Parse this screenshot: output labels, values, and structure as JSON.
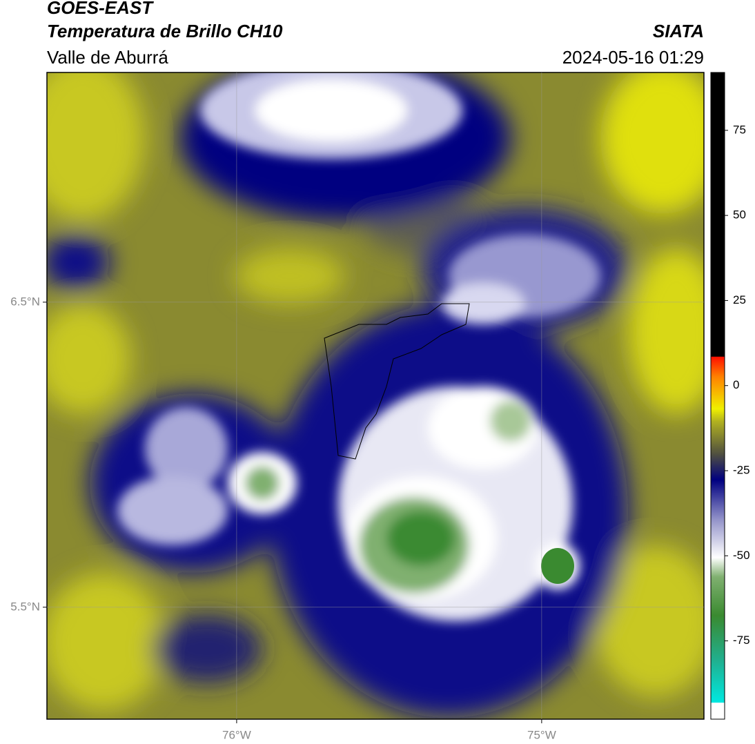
{
  "header": {
    "title": "GOES-EAST",
    "subtitle": "Temperatura de Brillo CH10",
    "region": "Valle de Aburrá",
    "source": "SIATA",
    "datetime": "2024-05-16 01:29"
  },
  "map": {
    "lon_range": [
      -76.622,
      -74.468
    ],
    "lat_range": [
      5.133,
      7.253
    ],
    "lon_ticks": [
      {
        "value": -76,
        "label": "76°W"
      },
      {
        "value": -75,
        "label": "75°W"
      }
    ],
    "lat_ticks": [
      {
        "value": 6.5,
        "label": "6.5°N"
      },
      {
        "value": 5.5,
        "label": "5.5°N"
      }
    ]
  },
  "colorbar": {
    "range": [
      -98,
      92
    ],
    "ticks": [
      75,
      50,
      25,
      0,
      -25,
      -50,
      -75
    ]
  }
}
